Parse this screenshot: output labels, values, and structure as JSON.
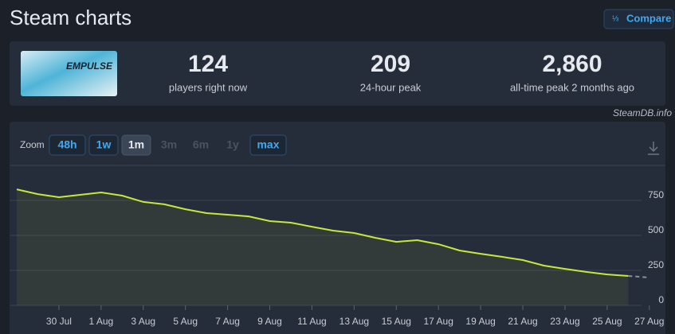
{
  "header": {
    "title": "Steam charts",
    "compare": "Compare"
  },
  "game": {
    "logo_text": "EMPULSE"
  },
  "stats": [
    {
      "value": "124",
      "label": "players right now"
    },
    {
      "value": "209",
      "label": "24-hour peak"
    },
    {
      "value": "2,860",
      "label": "all-time peak 2 months ago"
    }
  ],
  "credit": "SteamDB.info",
  "zoom": {
    "label": "Zoom",
    "options": [
      "48h",
      "1w",
      "1m",
      "3m",
      "6m",
      "1y",
      "max"
    ],
    "active": 2,
    "disabled": [
      3,
      4,
      5
    ]
  },
  "chart_data": {
    "type": "line",
    "x": [
      "28 Jul",
      "29 Jul",
      "30 Jul",
      "31 Jul",
      "1 Aug",
      "2 Aug",
      "3 Aug",
      "4 Aug",
      "5 Aug",
      "6 Aug",
      "7 Aug",
      "8 Aug",
      "9 Aug",
      "10 Aug",
      "11 Aug",
      "12 Aug",
      "13 Aug",
      "14 Aug",
      "15 Aug",
      "16 Aug",
      "17 Aug",
      "18 Aug",
      "19 Aug",
      "20 Aug",
      "21 Aug",
      "22 Aug",
      "23 Aug",
      "24 Aug",
      "25 Aug",
      "26 Aug",
      "27 Aug"
    ],
    "series": [
      {
        "color": "#c6e83a",
        "values": [
          829,
          795,
          773,
          790,
          807,
          784,
          739,
          722,
          687,
          659,
          648,
          636,
          602,
          591,
          562,
          534,
          517,
          483,
          454,
          466,
          437,
          392,
          369,
          347,
          324,
          284,
          261,
          239,
          221,
          210,
          null
        ]
      },
      {
        "color": "#8a9099",
        "dashed": true,
        "values": [
          null,
          null,
          null,
          null,
          null,
          null,
          null,
          null,
          null,
          null,
          null,
          null,
          null,
          null,
          null,
          null,
          null,
          null,
          null,
          null,
          null,
          null,
          null,
          null,
          null,
          null,
          null,
          null,
          null,
          210,
          199
        ]
      }
    ],
    "ylim": [
      0,
      1000
    ],
    "yticks": [
      0,
      250,
      500,
      750
    ],
    "xticks": [
      "30 Jul",
      "1 Aug",
      "3 Aug",
      "5 Aug",
      "7 Aug",
      "9 Aug",
      "11 Aug",
      "13 Aug",
      "15 Aug",
      "17 Aug",
      "19 Aug",
      "21 Aug",
      "23 Aug",
      "25 Aug",
      "27 Aug"
    ],
    "grid": true
  }
}
